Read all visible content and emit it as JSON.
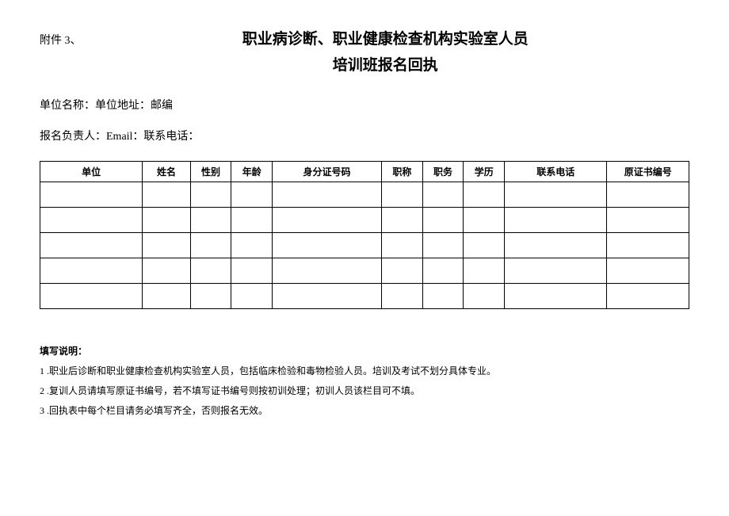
{
  "attachment_label": "附件 3、",
  "title_line1": "职业病诊断、职业健康检查机构实验室人员",
  "title_line2": "培训班报名回执",
  "info": {
    "line1": "单位名称：单位地址：邮编",
    "line2": "报名负责人：Email：联系电话："
  },
  "table": {
    "columns": [
      {
        "label": "单位",
        "width": "15%"
      },
      {
        "label": "姓名",
        "width": "7%"
      },
      {
        "label": "性别",
        "width": "6%"
      },
      {
        "label": "年龄",
        "width": "6%"
      },
      {
        "label": "身分证号码",
        "width": "16%"
      },
      {
        "label": "职称",
        "width": "6%"
      },
      {
        "label": "职务",
        "width": "6%"
      },
      {
        "label": "学历",
        "width": "6%"
      },
      {
        "label": "联系电话",
        "width": "15%"
      },
      {
        "label": "原证书编号",
        "width": "12%"
      }
    ],
    "row_count": 5
  },
  "notes": {
    "title": "填写说明：",
    "items": [
      "1 .职业后诊断和职业健康检查机构实验室人员，包括临床检验和毒物检验人员。培训及考试不划分具体专业。",
      "2 .复训人员请填写原证书编号，若不填写证书编号则按初训处理；初训人员该栏目可不填。",
      "3 .回执表中每个栏目请务必填写齐全，否则报名无效。"
    ]
  }
}
